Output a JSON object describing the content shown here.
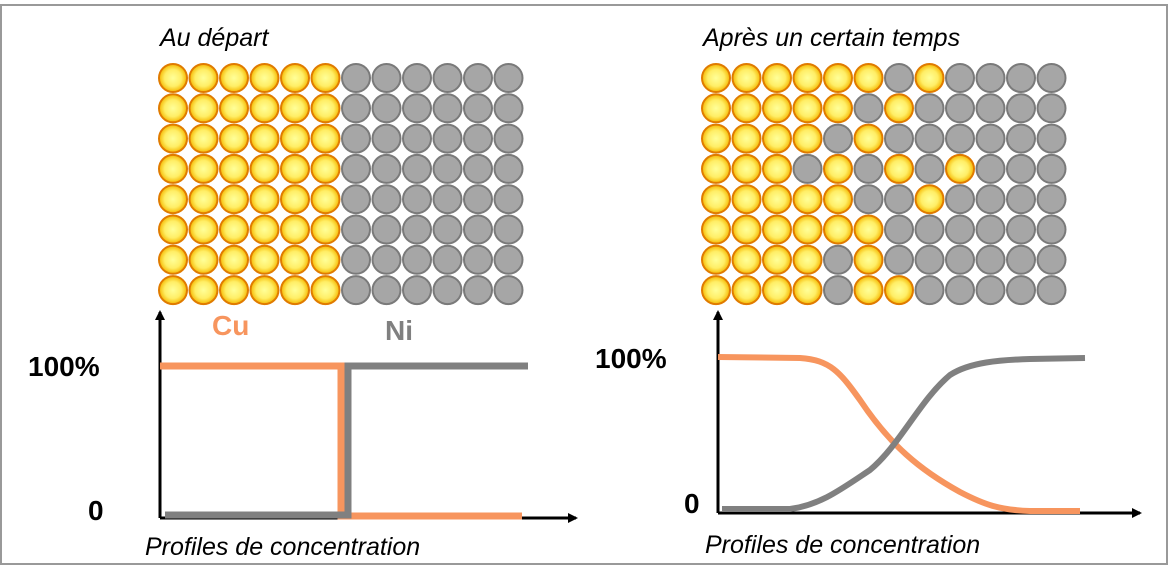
{
  "left": {
    "title": "Au départ",
    "cu_label": "Cu",
    "ni_label": "Ni",
    "y_top_label": "100%",
    "y_bottom_label": "0",
    "caption": "Profiles de concentration"
  },
  "right": {
    "title": "Après un certain temps",
    "y_top_label": "100%",
    "y_bottom_label": "0",
    "caption": "Profiles de concentration"
  }
}
